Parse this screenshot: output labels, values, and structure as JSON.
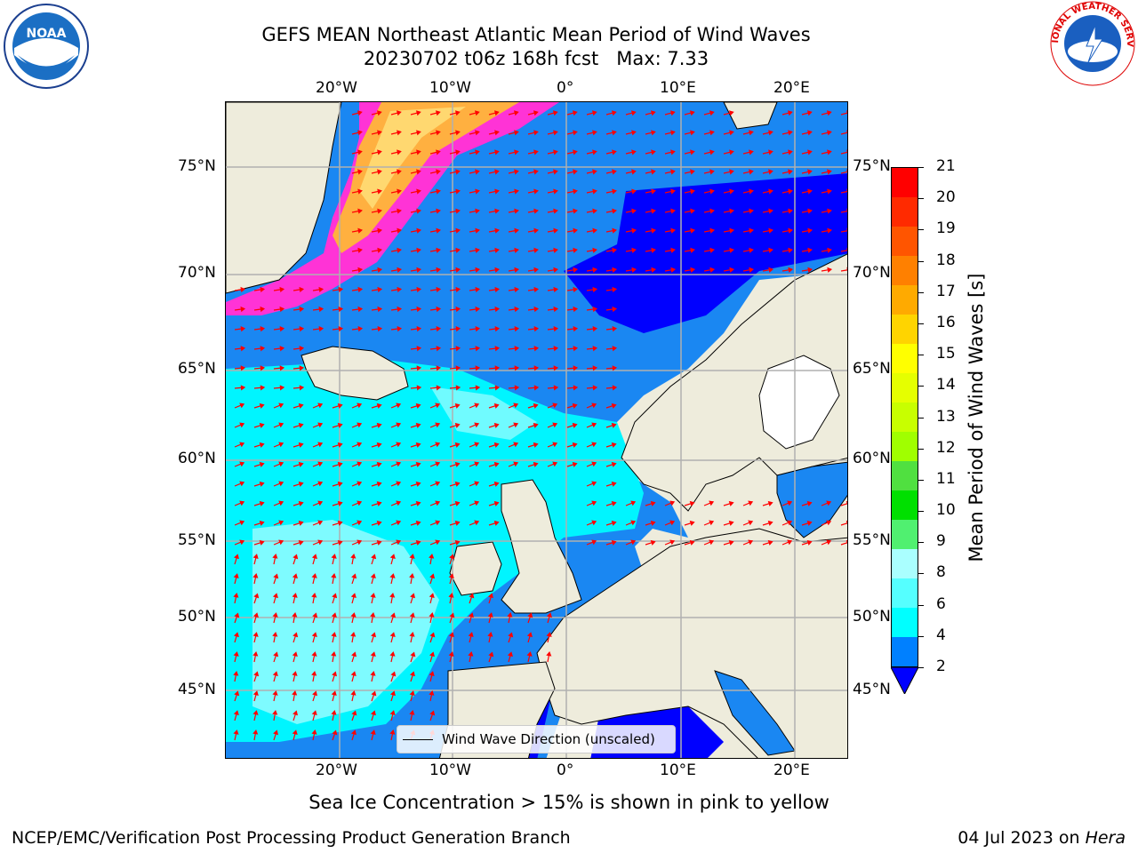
{
  "header": {
    "title_line1": "GEFS MEAN Northeast Atlantic Mean Period of Wind Waves",
    "title_line2": "20230702 t06z 168h fcst   Max: 7.33"
  },
  "logos": {
    "left": "NOAA",
    "right": "NATIONAL WEATHER SERVICE"
  },
  "map": {
    "lon_ticks": [
      "20°W",
      "10°W",
      "0°",
      "10°E",
      "20°E"
    ],
    "lat_ticks": [
      "75°N",
      "70°N",
      "65°N",
      "60°N",
      "55°N",
      "50°N",
      "45°N"
    ],
    "legend_label": "Wind Wave Direction (unscaled)",
    "arrow_color": "#ff0000",
    "land_color": "#eeecdc"
  },
  "colorbar": {
    "label": "Mean Period of Wind Waves [s]",
    "ticks": [
      "21",
      "20",
      "19",
      "18",
      "17",
      "16",
      "15",
      "14",
      "13",
      "12",
      "11",
      "10",
      "9",
      "8",
      "6",
      "4",
      "2"
    ],
    "colors": [
      "#ff0000",
      "#ff2a00",
      "#ff5500",
      "#ff8000",
      "#ffaa00",
      "#ffd400",
      "#ffff00",
      "#e5ff00",
      "#c8ff00",
      "#a0ff00",
      "#50e040",
      "#00e000",
      "#50f070",
      "#aaffff",
      "#55ffff",
      "#00ffff",
      "#0080ff"
    ],
    "extend_color": "#0000ff"
  },
  "footer": {
    "note": "Sea Ice Concentration > 15% is shown in pink to yellow",
    "left": "NCEP/EMC/Verification Post Processing Product Generation Branch",
    "right_prefix": "04 Jul 2023 on ",
    "right_machine": "Hera"
  }
}
